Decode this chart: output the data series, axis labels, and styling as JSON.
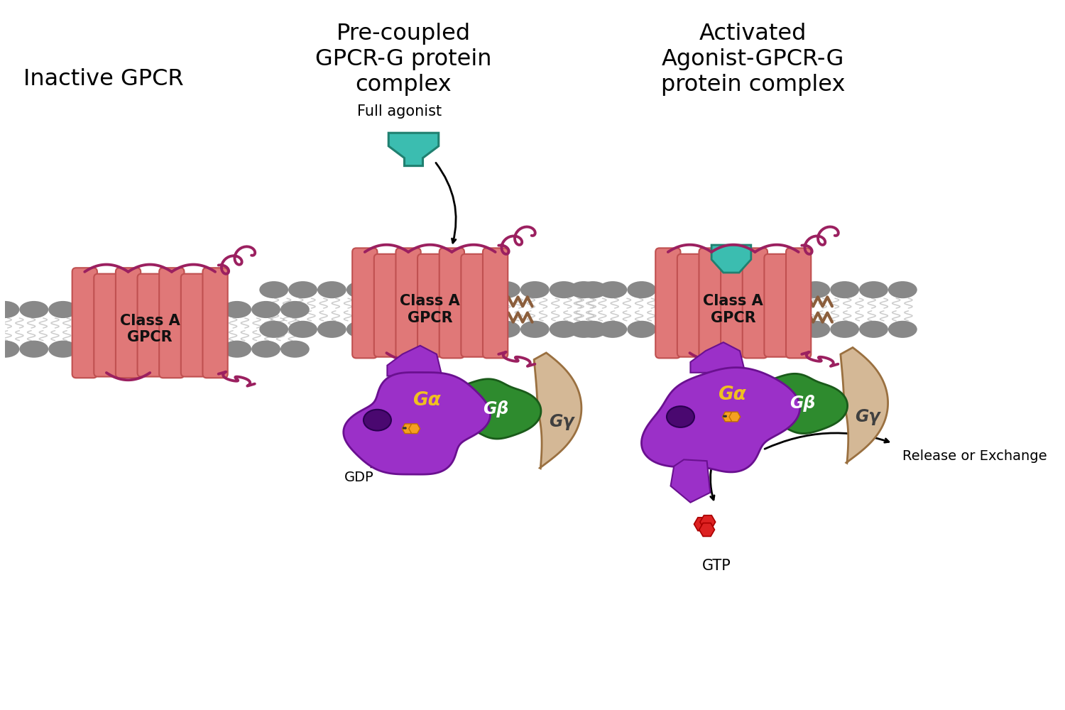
{
  "bg_color": "#ffffff",
  "title1": "Inactive GPCR",
  "title2": "Pre-coupled\nGPCR-G protein\ncomplex",
  "title3": "Activated\nAgonist-GPCR-G\nprotein complex",
  "label_class_a": "Class A\nGPCR",
  "label_ga": "Gα",
  "label_gb": "Gβ",
  "label_gy": "Gγ",
  "label_gdp": "GDP",
  "label_gtp": "GTP",
  "label_full_agonist": "Full agonist",
  "label_release": "Release or Exchange",
  "color_receptor": "#e07878",
  "color_receptor_edge": "#c05050",
  "color_loop": "#9b2060",
  "color_lipid_head": "#888888",
  "color_lipid_tail": "#c0c0c0",
  "color_ga": "#9B30C8",
  "color_ga_edge": "#6a1090",
  "color_ga_dark": "#4a0870",
  "color_gb": "#2E8B2E",
  "color_gb_edge": "#1a5a1a",
  "color_gy": "#d4b896",
  "color_gy_edge": "#9a7040",
  "color_agonist": "#3bbdb0",
  "color_agonist_edge": "#208070",
  "color_gdp": "#f5a020",
  "color_gtp": "#dd2222",
  "color_gtp_edge": "#aa0000",
  "color_palmitoyl": "#8B5E3C",
  "title_fontsize": 23,
  "label_fontsize": 17,
  "small_fontsize": 14
}
